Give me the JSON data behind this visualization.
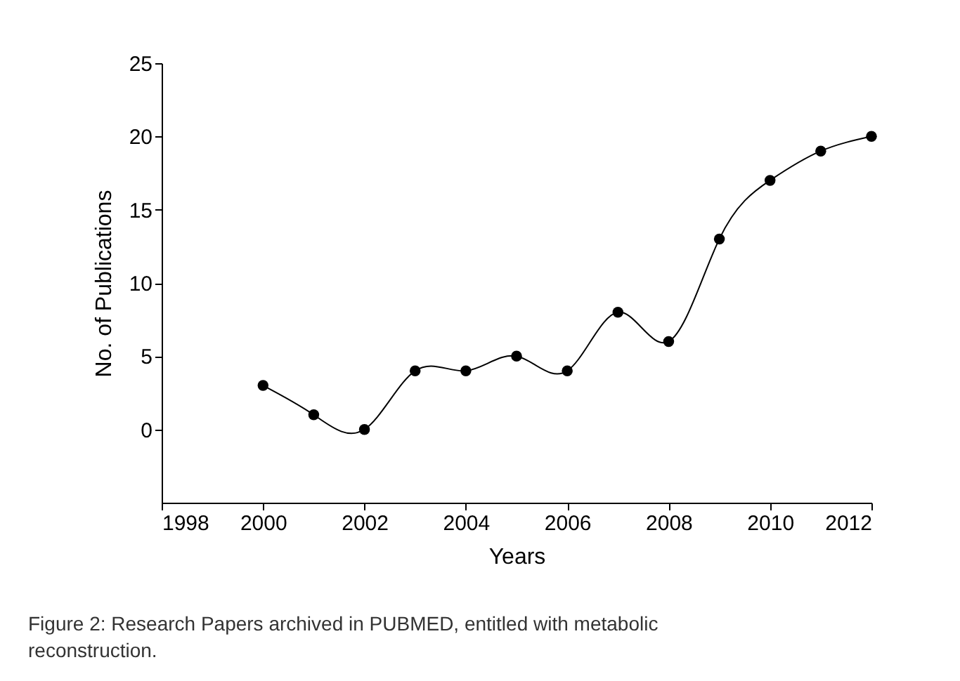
{
  "chart_data": {
    "type": "line",
    "xlabel": "Years",
    "ylabel": "No. of Publications",
    "x": [
      2000,
      2001,
      2002,
      2003,
      2004,
      2005,
      2006,
      2007,
      2008,
      2009,
      2010,
      2011,
      2012
    ],
    "series": [
      {
        "color": "#000000",
        "values": [
          3,
          1,
          0,
          4,
          4,
          5,
          4,
          8,
          6,
          13,
          17,
          19,
          20
        ]
      }
    ],
    "xlim": [
      1998,
      2012
    ],
    "xticks": [
      1998,
      2000,
      2002,
      2004,
      2006,
      2008,
      2010,
      2012
    ],
    "ylim": [
      -5,
      25
    ],
    "yticks": [
      0,
      5,
      10,
      15,
      20,
      25
    ],
    "marker": "circle",
    "line_style": "solid",
    "grid": false,
    "annotations": [
      "Figure 2: Research Papers archived in PUBMED, entitled with metabolic reconstruction."
    ]
  }
}
